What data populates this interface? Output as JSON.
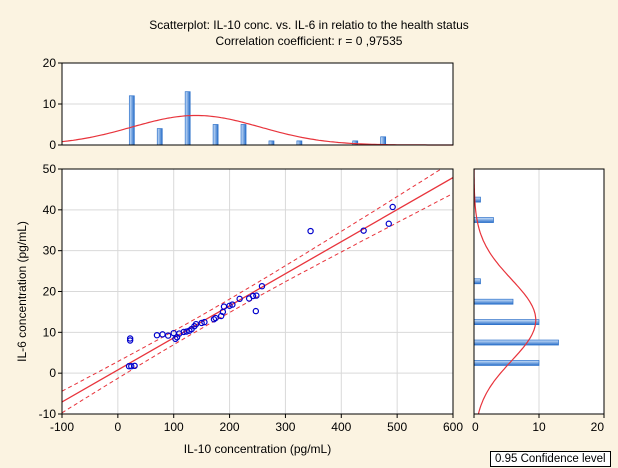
{
  "chart_data": {
    "type": "scatter",
    "title": "Scatterplot: IL-10 conc. vs. IL-6 in relatio to the health status",
    "subtitle": "Correlation coefficient: r =  0 ,97535",
    "xlabel": "IL-10 concentration (pg/mL)",
    "ylabel": "IL-6 concentration (pg/mL)",
    "xlim": [
      -100,
      600
    ],
    "ylim": [
      -10,
      50
    ],
    "xticks": [
      -100,
      0,
      100,
      200,
      300,
      400,
      500,
      600
    ],
    "yticks": [
      -10,
      0,
      10,
      20,
      30,
      40,
      50
    ],
    "grid": true,
    "points": [
      [
        22,
        8.5
      ],
      [
        22,
        8.0
      ],
      [
        20,
        1.7
      ],
      [
        24,
        1.7
      ],
      [
        30,
        1.8
      ],
      [
        70,
        9.3
      ],
      [
        80,
        9.5
      ],
      [
        90,
        9.2
      ],
      [
        100,
        9.8
      ],
      [
        103,
        8.4
      ],
      [
        106,
        8.8
      ],
      [
        110,
        9.7
      ],
      [
        118,
        10.1
      ],
      [
        123,
        10.2
      ],
      [
        128,
        10.4
      ],
      [
        132,
        10.8
      ],
      [
        137,
        11.5
      ],
      [
        140,
        12.0
      ],
      [
        150,
        12.3
      ],
      [
        155,
        12.5
      ],
      [
        172,
        13.2
      ],
      [
        175,
        13.5
      ],
      [
        185,
        14.0
      ],
      [
        188,
        15.0
      ],
      [
        190,
        16.3
      ],
      [
        200,
        16.5
      ],
      [
        205,
        16.8
      ],
      [
        218,
        18.2
      ],
      [
        235,
        18.3
      ],
      [
        242,
        18.9
      ],
      [
        247,
        15.2
      ],
      [
        248,
        19.0
      ],
      [
        258,
        21.3
      ],
      [
        345,
        34.8
      ],
      [
        440,
        34.9
      ],
      [
        485,
        36.6
      ],
      [
        492,
        40.7
      ]
    ],
    "regression": {
      "intercept": 0.8,
      "slope": 0.0785,
      "ci_halfwidth": 1.6
    },
    "top_hist": {
      "ylim": [
        0,
        20
      ],
      "yticks": [
        0,
        10,
        20
      ],
      "bins": [
        {
          "x": 25,
          "count": 12
        },
        {
          "x": 75,
          "count": 4
        },
        {
          "x": 125,
          "count": 13
        },
        {
          "x": 175,
          "count": 5
        },
        {
          "x": 225,
          "count": 5
        },
        {
          "x": 275,
          "count": 1
        },
        {
          "x": 325,
          "count": 1
        },
        {
          "x": 425,
          "count": 1
        },
        {
          "x": 475,
          "count": 2
        }
      ],
      "normal_fit": {
        "mean": 140,
        "sd": 115,
        "peak": 7.2
      }
    },
    "right_hist": {
      "xlim": [
        0,
        20
      ],
      "xticks": [
        0,
        10,
        20
      ],
      "bins": [
        {
          "y": 2.5,
          "count": 10
        },
        {
          "y": 7.5,
          "count": 13
        },
        {
          "y": 12.5,
          "count": 10
        },
        {
          "y": 17.5,
          "count": 6
        },
        {
          "y": 22.5,
          "count": 1
        },
        {
          "y": 37.5,
          "count": 3
        },
        {
          "y": 42.5,
          "count": 1
        }
      ],
      "normal_fit": {
        "mean": 13,
        "sd": 10,
        "peak": 9.5
      }
    },
    "legend": "0.95 Confidence level"
  },
  "colors": {
    "point": "#0000cc",
    "line": "#e8343c",
    "bar_dark": "#2a6fc9",
    "bar_light": "#cfe3fb",
    "grid": "#d9d9d9"
  }
}
